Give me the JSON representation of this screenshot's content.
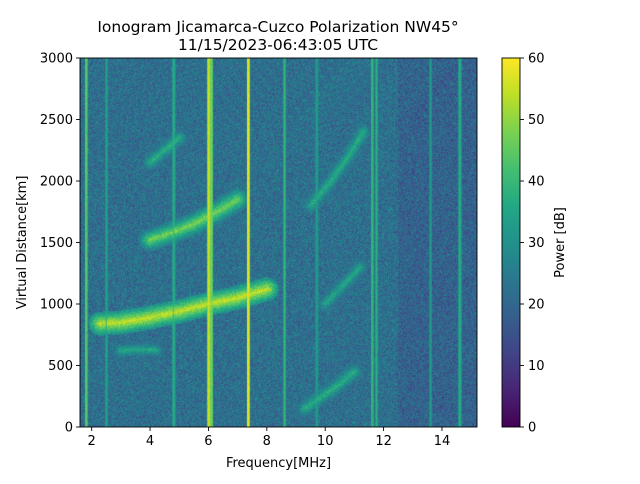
{
  "chart_data": {
    "type": "heatmap",
    "title": "Ionogram Jicamarca-Cuzco Polarization NW45°",
    "subtitle": "11/15/2023-06:43:05 UTC",
    "xlabel": "Frequency[MHz]",
    "ylabel": "Virtual Distance[km]",
    "colorbar_label": "Power [dB]",
    "colormap": "viridis",
    "xlim": [
      1.6,
      15.2
    ],
    "ylim": [
      0,
      3000
    ],
    "clim": [
      0,
      60
    ],
    "x_ticks": [
      2,
      4,
      6,
      8,
      10,
      12,
      14
    ],
    "y_ticks": [
      0,
      500,
      1000,
      1500,
      2000,
      2500,
      3000
    ],
    "colorbar_ticks": [
      0,
      10,
      20,
      30,
      40,
      50,
      60
    ],
    "background_power_db": 25,
    "echo_traces": [
      {
        "points": [
          [
            2.3,
            840
          ],
          [
            3.0,
            850
          ],
          [
            3.5,
            870
          ],
          [
            4.0,
            890
          ],
          [
            5.0,
            940
          ],
          [
            6.0,
            1000
          ],
          [
            7.0,
            1050
          ],
          [
            8.0,
            1120
          ]
        ],
        "peak_db": 55
      },
      {
        "points": [
          [
            4.0,
            1520
          ],
          [
            4.5,
            1560
          ],
          [
            5.5,
            1650
          ],
          [
            6.3,
            1750
          ],
          [
            7.0,
            1850
          ]
        ],
        "peak_db": 48
      },
      {
        "points": [
          [
            4.0,
            2150
          ],
          [
            4.5,
            2250
          ],
          [
            5.0,
            2350
          ]
        ],
        "peak_db": 38
      },
      {
        "points": [
          [
            3.0,
            620
          ],
          [
            3.6,
            630
          ],
          [
            4.2,
            625
          ]
        ],
        "peak_db": 36
      },
      {
        "points": [
          [
            9.3,
            150
          ],
          [
            9.9,
            250
          ],
          [
            10.5,
            350
          ],
          [
            11.0,
            450
          ]
        ],
        "peak_db": 38
      },
      {
        "points": [
          [
            10.0,
            1000
          ],
          [
            10.6,
            1150
          ],
          [
            11.2,
            1300
          ]
        ],
        "peak_db": 36
      },
      {
        "points": [
          [
            9.5,
            1800
          ],
          [
            10.2,
            2000
          ],
          [
            10.8,
            2200
          ],
          [
            11.3,
            2400
          ]
        ],
        "peak_db": 37
      }
    ],
    "interference_lines": [
      {
        "freq": 1.8,
        "power_db": 45
      },
      {
        "freq": 2.5,
        "power_db": 35
      },
      {
        "freq": 4.8,
        "power_db": 38
      },
      {
        "freq": 6.0,
        "power_db": 56
      },
      {
        "freq": 6.1,
        "power_db": 48
      },
      {
        "freq": 7.35,
        "power_db": 58
      },
      {
        "freq": 8.6,
        "power_db": 40
      },
      {
        "freq": 9.7,
        "power_db": 34
      },
      {
        "freq": 11.6,
        "power_db": 40
      },
      {
        "freq": 11.75,
        "power_db": 38
      },
      {
        "freq": 13.6,
        "power_db": 33
      },
      {
        "freq": 14.6,
        "power_db": 38
      }
    ]
  }
}
